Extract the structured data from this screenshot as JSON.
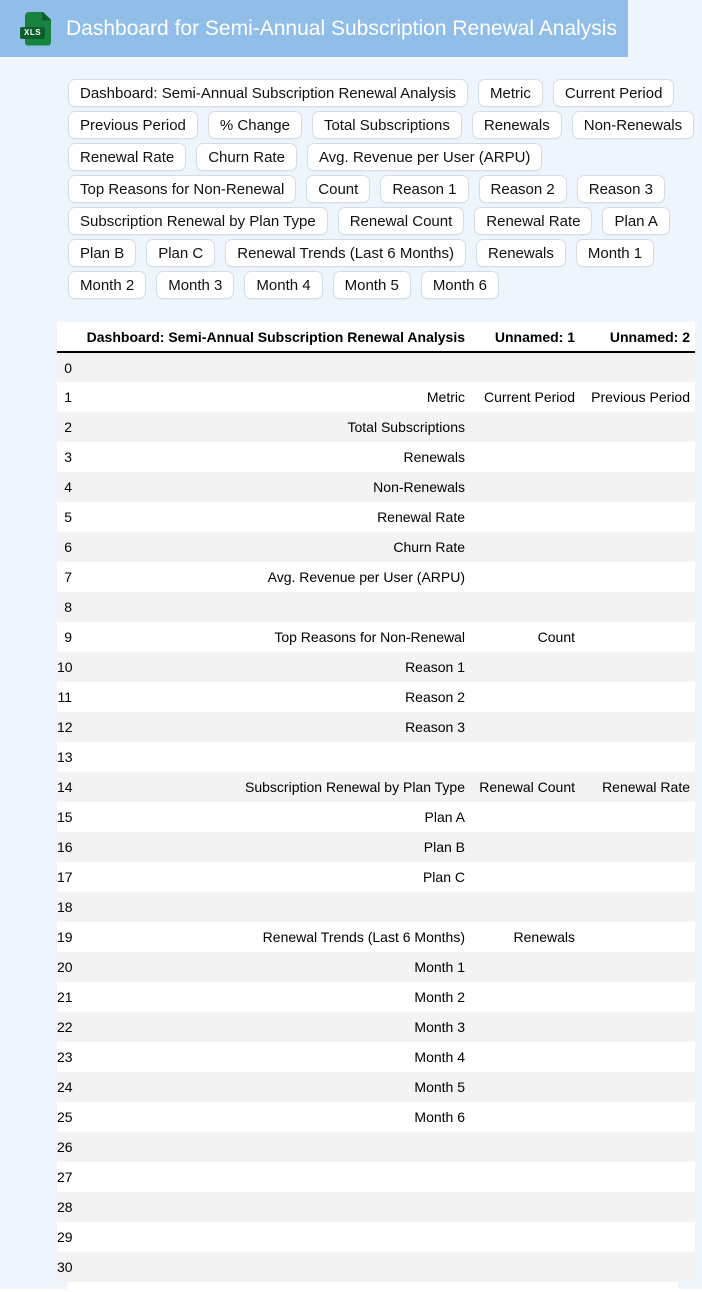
{
  "header": {
    "title": "Dashboard for Semi-Annual Subscription Renewal Analysis",
    "icon_label": "XLS"
  },
  "chips": [
    "Dashboard: Semi-Annual Subscription Renewal Analysis",
    "Metric",
    "Current Period",
    "Previous Period",
    "% Change",
    "Total Subscriptions",
    "Renewals",
    "Non-Renewals",
    "Renewal Rate",
    "Churn Rate",
    "Avg. Revenue per User (ARPU)",
    "Top Reasons for Non-Renewal",
    "Count",
    "Reason 1",
    "Reason 2",
    "Reason 3",
    "Subscription Renewal by Plan Type",
    "Renewal Count",
    "Renewal Rate",
    "Plan A",
    "Plan B",
    "Plan C",
    "Renewal Trends (Last 6 Months)",
    "Renewals",
    "Month 1",
    "Month 2",
    "Month 3",
    "Month 4",
    "Month 5",
    "Month 6"
  ],
  "table": {
    "columns": [
      "",
      "Dashboard: Semi-Annual Subscription Renewal Analysis",
      "Unnamed: 1",
      "Unnamed: 2"
    ],
    "rows": [
      [
        "0",
        "",
        "",
        ""
      ],
      [
        "1",
        "Metric",
        "Current Period",
        "Previous Period"
      ],
      [
        "2",
        "Total Subscriptions",
        "",
        ""
      ],
      [
        "3",
        "Renewals",
        "",
        ""
      ],
      [
        "4",
        "Non-Renewals",
        "",
        ""
      ],
      [
        "5",
        "Renewal Rate",
        "",
        ""
      ],
      [
        "6",
        "Churn Rate",
        "",
        ""
      ],
      [
        "7",
        "Avg. Revenue per User (ARPU)",
        "",
        ""
      ],
      [
        "8",
        "",
        "",
        ""
      ],
      [
        "9",
        "Top Reasons for Non-Renewal",
        "Count",
        ""
      ],
      [
        "10",
        "Reason 1",
        "",
        ""
      ],
      [
        "11",
        "Reason 2",
        "",
        ""
      ],
      [
        "12",
        "Reason 3",
        "",
        ""
      ],
      [
        "13",
        "",
        "",
        ""
      ],
      [
        "14",
        "Subscription Renewal by Plan Type",
        "Renewal Count",
        "Renewal Rate"
      ],
      [
        "15",
        "Plan A",
        "",
        ""
      ],
      [
        "16",
        "Plan B",
        "",
        ""
      ],
      [
        "17",
        "Plan C",
        "",
        ""
      ],
      [
        "18",
        "",
        "",
        ""
      ],
      [
        "19",
        "Renewal Trends (Last 6 Months)",
        "Renewals",
        ""
      ],
      [
        "20",
        "Month 1",
        "",
        ""
      ],
      [
        "21",
        "Month 2",
        "",
        ""
      ],
      [
        "22",
        "Month 3",
        "",
        ""
      ],
      [
        "23",
        "Month 4",
        "",
        ""
      ],
      [
        "24",
        "Month 5",
        "",
        ""
      ],
      [
        "25",
        "Month 6",
        "",
        ""
      ],
      [
        "26",
        "",
        "",
        ""
      ],
      [
        "27",
        "",
        "",
        ""
      ],
      [
        "28",
        "",
        "",
        ""
      ],
      [
        "29",
        "",
        "",
        ""
      ],
      [
        "30",
        "",
        "",
        ""
      ]
    ]
  },
  "colors": {
    "header_bar": "#90BEE8",
    "page_background": "#EFF5FC",
    "chip_border": "#D6DCE6",
    "row_stripe": "#F3F3F3",
    "icon_green": "#17833F",
    "icon_green_dark": "#0C5F2C"
  }
}
